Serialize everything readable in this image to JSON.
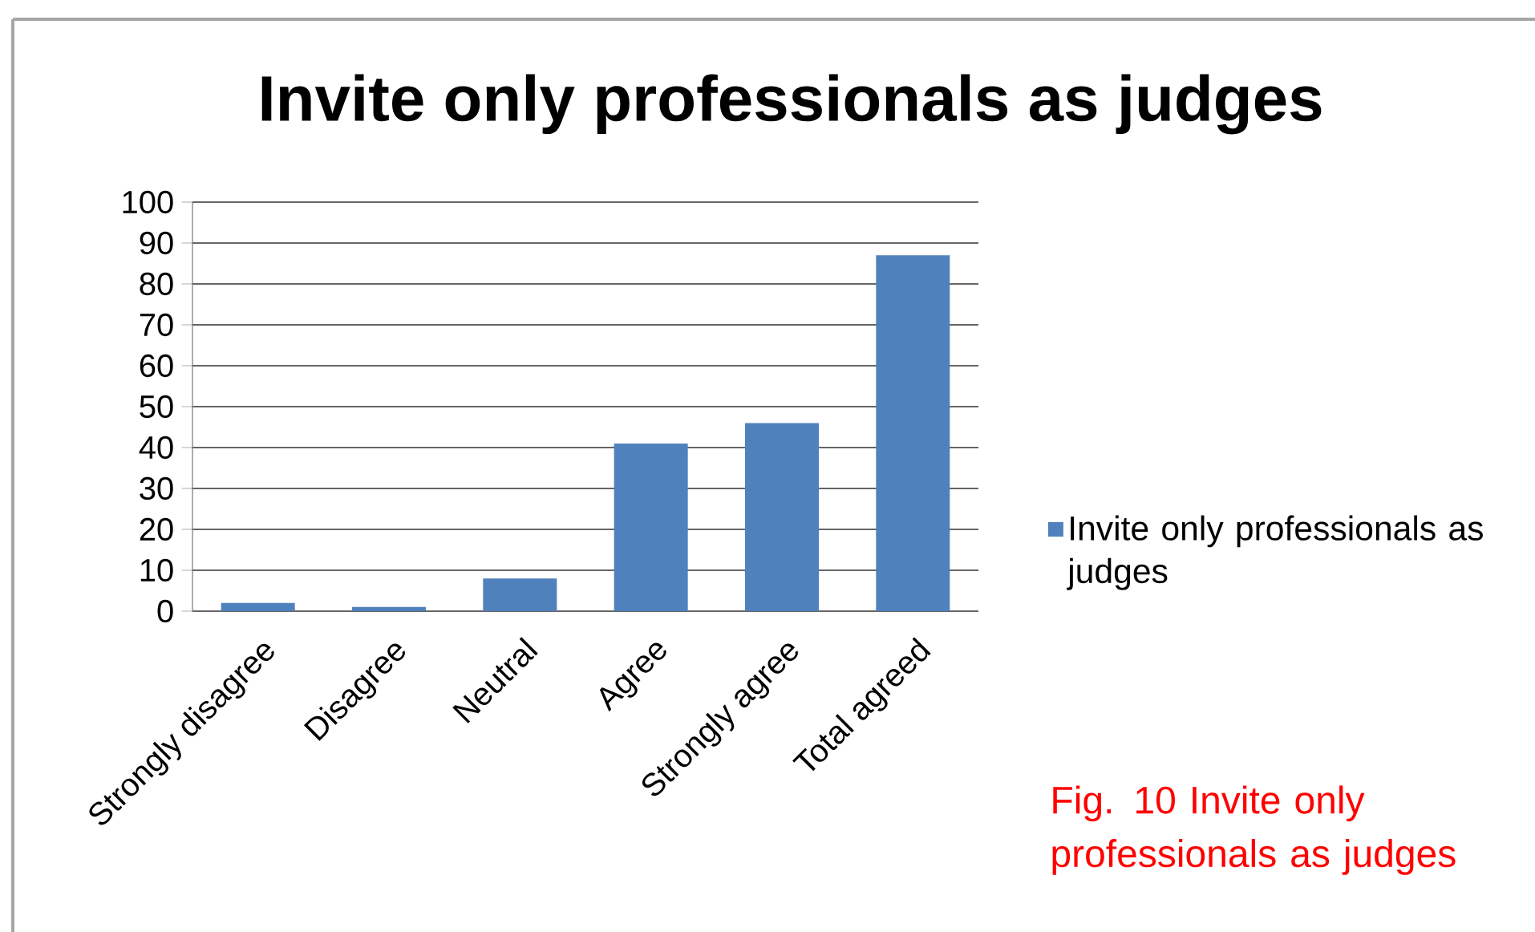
{
  "chart_data": {
    "type": "bar",
    "title": "Invite only professionals as judges",
    "categories": [
      "Strongly disagree",
      "Disagree",
      "Neutral",
      "Agree",
      "Strongly agree",
      "Total agreed"
    ],
    "series": [
      {
        "name": "Invite only professionals as judges",
        "color": "#4f81bd",
        "values": [
          2,
          1,
          8,
          41,
          46,
          87
        ]
      }
    ],
    "ylim": [
      0,
      100
    ],
    "yticks": [
      0,
      10,
      20,
      30,
      40,
      50,
      60,
      70,
      80,
      90,
      100
    ],
    "grid": "y",
    "legend": "right",
    "annotations": [
      "Fig. 10 Invite only professionals as judges"
    ]
  }
}
